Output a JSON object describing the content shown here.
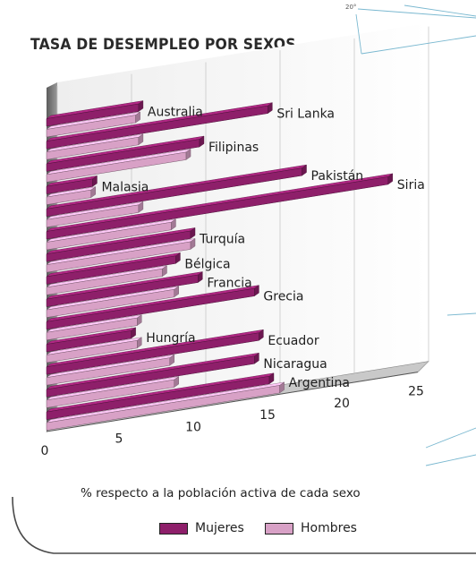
{
  "corner_label": "20°",
  "chart_data": {
    "type": "bar",
    "orientation": "horizontal",
    "title": "TASA DE DESEMPLEO POR SEXOS",
    "xlabel": "% respecto a la población activa de cada sexo",
    "ylabel": "",
    "xlim": [
      0,
      25
    ],
    "xticks": [
      0,
      5,
      10,
      15,
      20,
      25
    ],
    "grid": true,
    "legend_position": "bottom",
    "categories": [
      "Australia",
      "Sri Lanka",
      "Filipinas",
      "Malasia",
      "Pakistán",
      "Siria",
      "Turquía",
      "Bélgica",
      "Francia",
      "Grecia",
      "Hungría",
      "Ecuador",
      "Nicaragua",
      "Argentina"
    ],
    "series": [
      {
        "name": "Mujeres",
        "color": "#8e1f6a",
        "values": [
          6.2,
          14.9,
          10.3,
          3.1,
          17.2,
          23.0,
          9.7,
          8.7,
          10.2,
          14.0,
          5.7,
          14.3,
          14.0,
          15.0
        ]
      },
      {
        "name": "Hombres",
        "color": "#d8a1c6",
        "values": [
          6.0,
          6.2,
          9.4,
          3.0,
          6.2,
          8.4,
          9.7,
          7.8,
          8.6,
          6.1,
          6.1,
          8.3,
          8.6,
          15.7
        ]
      }
    ]
  }
}
